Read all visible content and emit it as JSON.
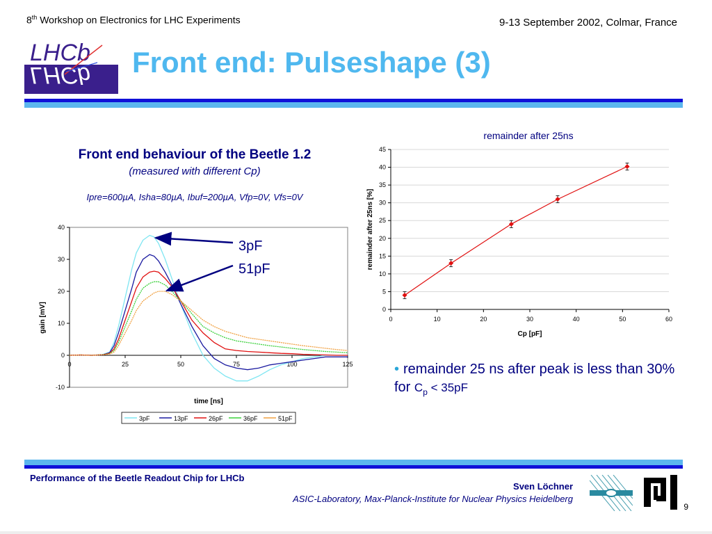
{
  "header": {
    "workshop_pre": "8",
    "workshop_sup": "th",
    "workshop_post": " Workshop on Electronics for LHC Experiments",
    "date_place": "9-13 September 2002, Colmar, France"
  },
  "logo": {
    "text_top": "LHCb",
    "text_bottom": "LHCb"
  },
  "title": "Front end: Pulseshape (3)",
  "left_panel": {
    "heading": "Front end behaviour of the Beetle 1.2",
    "subheading": "(measured with different Cp)",
    "params": "Ipre=600µA, Isha=80µA, Ibuf=200µA, Vfp=0V, Vfs=0V",
    "annotations": [
      "3pF",
      "51pF"
    ]
  },
  "bullet": {
    "text_before": "remainder 25 ns after peak is less than 30% for ",
    "symbol": "C",
    "subscript": "p",
    "text_after": " < 35pF"
  },
  "footer": {
    "left": "Performance of the Beetle Readout Chip for LHCb",
    "author": "Sven Löchner",
    "org": "ASIC-Laboratory, Max-Planck-Institute for Nuclear Physics Heidelberg",
    "page": "9"
  },
  "colors": {
    "title": "#4fb8ef",
    "navy": "#000080",
    "bar_dark": "#1010d8",
    "bar_light": "#5cb6ee"
  },
  "chart_data": [
    {
      "type": "line",
      "title": "",
      "xlabel": "time [ns]",
      "ylabel": "gain [mV]",
      "xlim": [
        0,
        125
      ],
      "ylim": [
        -10,
        40
      ],
      "xticks": [
        0,
        25,
        50,
        75,
        100,
        125
      ],
      "yticks": [
        -10,
        0,
        10,
        20,
        30,
        40
      ],
      "legend": "bottom",
      "series": [
        {
          "name": "3pF",
          "color": "#7fe6f2",
          "x": [
            0,
            5,
            10,
            15,
            18,
            20,
            22,
            25,
            28,
            30,
            33,
            36,
            38,
            40,
            43,
            46,
            50,
            55,
            60,
            65,
            70,
            75,
            80,
            85,
            90,
            95,
            100,
            105,
            110,
            115,
            120,
            125
          ],
          "y": [
            0,
            0.1,
            0,
            0.3,
            1,
            4,
            9,
            18,
            27,
            32,
            36,
            37.5,
            37,
            35,
            30,
            24,
            16,
            7,
            0,
            -4,
            -6.5,
            -8,
            -8,
            -6.5,
            -4.5,
            -3,
            -2,
            -1,
            -0.5,
            0,
            0,
            0
          ]
        },
        {
          "name": "13pF",
          "color": "#1a1aa0",
          "x": [
            0,
            5,
            10,
            15,
            18,
            20,
            22,
            25,
            28,
            30,
            33,
            36,
            38,
            40,
            43,
            46,
            50,
            55,
            60,
            65,
            70,
            75,
            80,
            85,
            90,
            95,
            100,
            105,
            110,
            115,
            120,
            125
          ],
          "y": [
            0,
            0.1,
            0,
            0.2,
            0.8,
            3,
            7,
            14,
            21,
            26,
            30,
            31.5,
            31,
            29.5,
            26,
            22,
            16,
            9,
            3,
            -1,
            -3,
            -4,
            -4.5,
            -4,
            -3,
            -2.5,
            -2,
            -1.5,
            -1,
            -0.5,
            -0.5,
            -0.5
          ]
        },
        {
          "name": "26pF",
          "color": "#e01010",
          "x": [
            0,
            5,
            10,
            15,
            18,
            20,
            22,
            25,
            28,
            30,
            33,
            36,
            38,
            40,
            43,
            46,
            50,
            55,
            60,
            65,
            70,
            75,
            80,
            85,
            90,
            95,
            100,
            105,
            110,
            115,
            120,
            125
          ],
          "y": [
            0,
            0.1,
            0,
            0.2,
            0.6,
            2,
            5,
            11,
            17,
            21,
            24.5,
            26,
            26.3,
            26,
            24,
            21.5,
            17,
            11,
            7,
            4,
            2,
            1.5,
            1.2,
            1,
            0.8,
            0.6,
            0.5,
            0.3,
            0.2,
            0.1,
            0,
            0
          ]
        },
        {
          "name": "36pF",
          "color": "#3ad03a",
          "x": [
            0,
            5,
            10,
            15,
            18,
            20,
            22,
            25,
            28,
            30,
            33,
            36,
            38,
            40,
            43,
            46,
            50,
            55,
            60,
            65,
            70,
            75,
            80,
            85,
            90,
            95,
            100,
            105,
            110,
            115,
            120,
            125
          ],
          "y": [
            0,
            0.1,
            0,
            0.2,
            0.5,
            1.5,
            4,
            9,
            14,
            17.5,
            21,
            22.5,
            23,
            23,
            22,
            20,
            17,
            13,
            9,
            7,
            5.5,
            4.5,
            4,
            3.5,
            3,
            2.6,
            2.2,
            1.8,
            1.5,
            1.2,
            1,
            0.8
          ]
        },
        {
          "name": "51pF",
          "color": "#f0a040",
          "x": [
            0,
            5,
            10,
            15,
            18,
            20,
            22,
            25,
            28,
            30,
            33,
            36,
            38,
            40,
            43,
            46,
            50,
            55,
            60,
            65,
            70,
            75,
            80,
            85,
            90,
            95,
            100,
            105,
            110,
            115,
            120,
            125
          ],
          "y": [
            0,
            0.1,
            0,
            0.2,
            0.4,
            1,
            3,
            7,
            11,
            14,
            17,
            18.5,
            19.5,
            20,
            20,
            19,
            17,
            14,
            11,
            9,
            7.5,
            6.5,
            5.5,
            5,
            4.5,
            4,
            3.5,
            3,
            2.6,
            2.2,
            1.8,
            1.5
          ]
        }
      ]
    },
    {
      "type": "scatter",
      "title": "remainder after 25ns",
      "xlabel": "Cp [pF]",
      "ylabel": "remainder after 25ns [%]",
      "xlim": [
        0,
        60
      ],
      "ylim": [
        0,
        45
      ],
      "xticks": [
        0,
        10,
        20,
        30,
        40,
        50,
        60
      ],
      "yticks": [
        0,
        5,
        10,
        15,
        20,
        25,
        30,
        35,
        40,
        45
      ],
      "grid": true,
      "series": [
        {
          "color": "#e01010",
          "x": [
            3,
            13,
            26,
            36,
            51
          ],
          "y": [
            4,
            13,
            24,
            31,
            40.2
          ],
          "yerr": [
            1,
            1,
            1,
            1,
            1
          ]
        }
      ]
    }
  ]
}
